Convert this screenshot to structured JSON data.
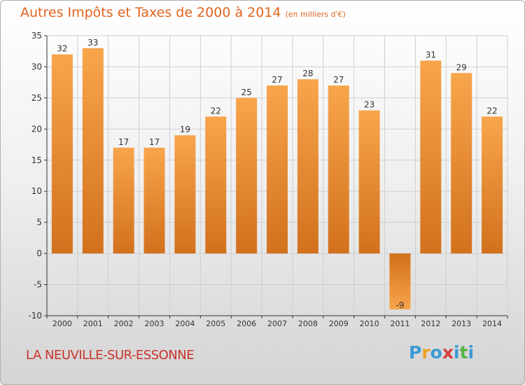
{
  "header": {
    "title": "Autres Impôts et Taxes de 2000 à 2014",
    "unit": "(en milliers d'€)"
  },
  "footer": {
    "city": "LA NEUVILLE-SUR-ESSONNE",
    "logo_letters": [
      "P",
      "r",
      "o",
      "x",
      "i",
      "t",
      "i"
    ],
    "logo_colors": [
      "#3a9bd5",
      "#f0a020",
      "#3a9bd5",
      "#d63c3c",
      "#3a9bd5",
      "#58b24a",
      "#3a9bd5"
    ]
  },
  "chart_data": {
    "type": "bar",
    "title": "Autres Impôts et Taxes de 2000 à 2014",
    "unit": "(en milliers d'€)",
    "categories": [
      "2000",
      "2001",
      "2002",
      "2003",
      "2004",
      "2005",
      "2006",
      "2007",
      "2008",
      "2009",
      "2010",
      "2011",
      "2012",
      "2013",
      "2014"
    ],
    "values": [
      32,
      33,
      17,
      17,
      19,
      22,
      25,
      27,
      28,
      27,
      23,
      -9,
      31,
      29,
      22
    ],
    "ylim": [
      -10,
      35
    ],
    "yticks": [
      -10,
      -5,
      0,
      5,
      10,
      15,
      20,
      25,
      30,
      35
    ],
    "grid": true,
    "colors": {
      "bar_light": "#f8a54c",
      "bar_dark": "#d2711d",
      "grid": "#cfcfcf",
      "axis": "#333333",
      "label": "#333333"
    }
  }
}
